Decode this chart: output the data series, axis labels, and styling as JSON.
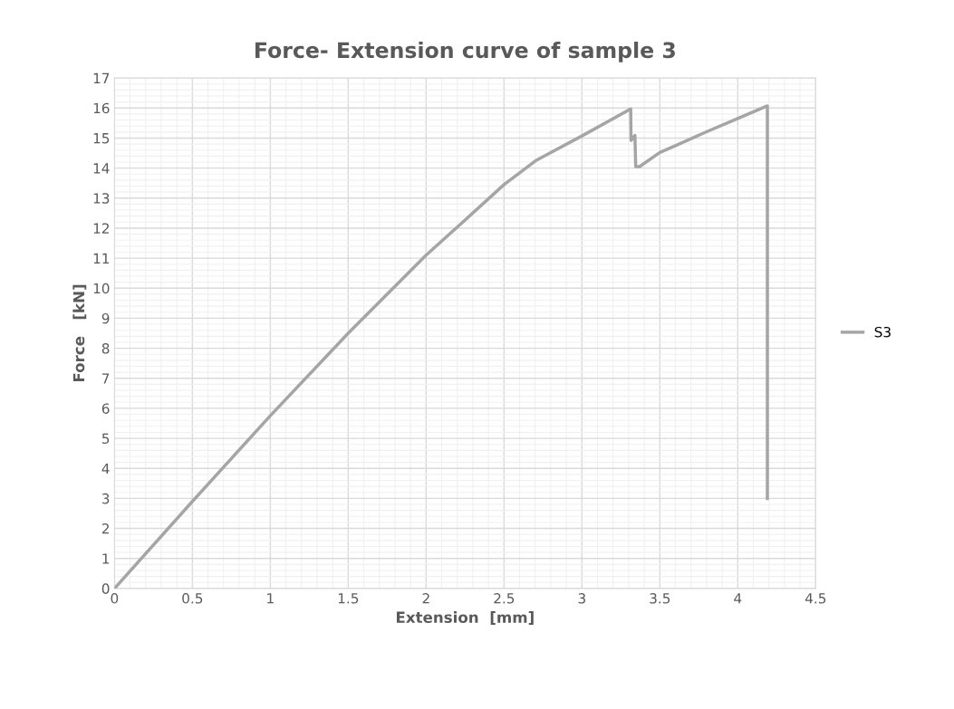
{
  "chart_data": {
    "type": "line",
    "title": "Force- Extension curve of sample 3",
    "xlabel": "Extension  [mm]",
    "ylabel": "Force   [kN]",
    "xlim": [
      0,
      4.5
    ],
    "xticks": [
      0,
      0.5,
      1,
      1.5,
      2,
      2.5,
      3,
      3.5,
      4,
      4.5
    ],
    "ylim": [
      0,
      17
    ],
    "yticks": [
      0,
      1,
      2,
      3,
      4,
      5,
      6,
      7,
      8,
      9,
      10,
      11,
      12,
      13,
      14,
      15,
      16,
      17
    ],
    "grid": true,
    "legend": "right",
    "marker": "none",
    "line_style": "solid",
    "series": [
      {
        "name": "S3",
        "color": "#a5a5a5",
        "x": [
          0,
          0.5,
          1,
          1.5,
          2,
          2.15,
          2.5,
          2.71,
          3,
          3.313,
          3.315,
          3.34,
          3.345,
          3.37,
          3.5,
          3.61,
          3.8,
          4,
          4.19,
          4.19
        ],
        "values": [
          0,
          2.9,
          5.75,
          8.5,
          11.1,
          11.8,
          13.45,
          14.27,
          15.07,
          15.97,
          14.92,
          15.09,
          14.05,
          14.05,
          14.52,
          14.77,
          15.21,
          15.65,
          16.07,
          3.0
        ]
      }
    ]
  }
}
